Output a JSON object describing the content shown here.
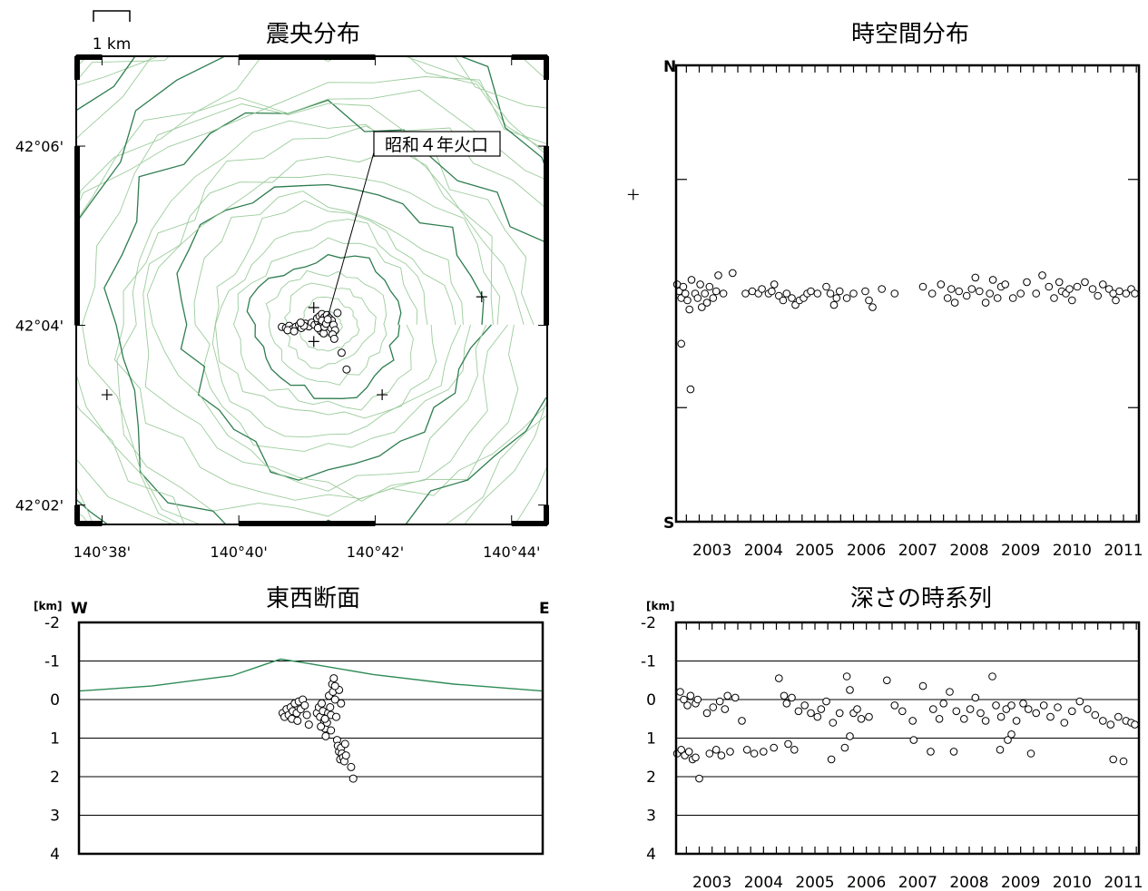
{
  "colors": {
    "frame": "#000000",
    "contour_major": "#2e7d4f",
    "contour_minor": "#9ccc9c",
    "topography": "#2e8b57"
  },
  "chart_data": [
    {
      "id": "epicenter-map",
      "type": "scatter",
      "title": "震央分布",
      "scale_bar_label": "1 km",
      "x_tick_labels": [
        "140°38'",
        "140°40'",
        "140°42'",
        "140°44'"
      ],
      "y_tick_labels": [
        "42°06'",
        "42°04'",
        "42°02'"
      ],
      "x_ticks_deg": [
        140.6333,
        140.6667,
        140.7,
        140.7333
      ],
      "y_ticks_deg": [
        42.1,
        42.0667,
        42.0333
      ],
      "xlim": [
        140.627,
        140.742
      ],
      "ylim": [
        42.0297,
        42.1167
      ],
      "crater": {
        "label": "昭和４年火口",
        "lon": 140.6885,
        "lat": 42.0685
      },
      "stations_lonlat": [
        [
          140.763,
          42.091
        ],
        [
          140.726,
          42.072
        ],
        [
          140.6345,
          42.0538
        ],
        [
          140.7017,
          42.0538
        ],
        [
          140.685,
          42.07
        ],
        [
          140.685,
          42.0637
        ]
      ],
      "points_lonlat": [
        [
          140.683,
          42.067
        ],
        [
          140.6838,
          42.0665
        ],
        [
          140.6845,
          42.0672
        ],
        [
          140.6852,
          42.0668
        ],
        [
          140.686,
          42.0674
        ],
        [
          140.6866,
          42.0666
        ],
        [
          140.6872,
          42.067
        ],
        [
          140.6878,
          42.0676
        ],
        [
          140.6884,
          42.0668
        ],
        [
          140.689,
          42.0672
        ],
        [
          140.6858,
          42.068
        ],
        [
          140.6864,
          42.0684
        ],
        [
          140.687,
          42.0688
        ],
        [
          140.6876,
          42.0682
        ],
        [
          140.6882,
          42.0686
        ],
        [
          140.6888,
          42.068
        ],
        [
          140.6894,
          42.0676
        ],
        [
          140.688,
          42.066
        ],
        [
          140.6886,
          42.0656
        ],
        [
          140.6892,
          42.0662
        ],
        [
          140.6868,
          42.0656
        ],
        [
          140.6874,
          42.0652
        ],
        [
          140.6898,
          42.0668
        ],
        [
          140.6902,
          42.0658
        ],
        [
          140.6896,
          42.065
        ],
        [
          140.6772,
          42.0664
        ],
        [
          140.6782,
          42.0662
        ],
        [
          140.679,
          42.0666
        ],
        [
          140.6798,
          42.066
        ],
        [
          140.6806,
          42.0664
        ],
        [
          140.6814,
          42.0668
        ],
        [
          140.682,
          42.0662
        ],
        [
          140.6826,
          42.0666
        ],
        [
          140.6786,
          42.0658
        ],
        [
          140.6802,
          42.0656
        ],
        [
          140.6818,
          42.0672
        ],
        [
          140.6908,
          42.069
        ],
        [
          140.69,
          42.0642
        ],
        [
          140.6918,
          42.0616
        ],
        [
          140.693,
          42.0585
        ],
        [
          140.686,
          42.0662
        ],
        [
          140.6876,
          42.0664
        ],
        [
          140.687,
          42.0676
        ],
        [
          140.688,
          42.067
        ],
        [
          140.6884,
          42.0678
        ]
      ]
    },
    {
      "id": "space-time",
      "type": "scatter",
      "title": "時空間分布",
      "y_top_label": "N",
      "y_bottom_label": "S",
      "x_tick_labels": [
        "2003",
        "2004",
        "2005",
        "2006",
        "2007",
        "2008",
        "2009",
        "2010",
        "2011"
      ],
      "xlim": [
        2002.3,
        2011.3
      ],
      "ylim": [
        -1,
        1
      ],
      "points": [
        [
          2002.32,
          0.04
        ],
        [
          2002.36,
          0.01
        ],
        [
          2002.4,
          -0.02
        ],
        [
          2002.44,
          0.03
        ],
        [
          2002.48,
          0.0
        ],
        [
          2002.52,
          -0.03
        ],
        [
          2002.4,
          -0.22
        ],
        [
          2002.58,
          -0.42
        ],
        [
          2002.56,
          -0.07
        ],
        [
          2002.6,
          0.06
        ],
        [
          2002.67,
          0.0
        ],
        [
          2002.72,
          -0.02
        ],
        [
          2002.77,
          0.04
        ],
        [
          2002.8,
          -0.06
        ],
        [
          2002.86,
          0.0
        ],
        [
          2002.9,
          -0.04
        ],
        [
          2002.95,
          0.03
        ],
        [
          2003.02,
          -0.02
        ],
        [
          2003.08,
          0.01
        ],
        [
          2003.12,
          0.08
        ],
        [
          2003.22,
          0.0
        ],
        [
          2003.4,
          0.09
        ],
        [
          2003.65,
          0.0
        ],
        [
          2003.78,
          0.01
        ],
        [
          2003.9,
          0.0
        ],
        [
          2003.97,
          0.02
        ],
        [
          2004.1,
          0.0
        ],
        [
          2004.16,
          0.01
        ],
        [
          2004.21,
          0.04
        ],
        [
          2004.3,
          -0.01
        ],
        [
          2004.38,
          -0.03
        ],
        [
          2004.45,
          0.0
        ],
        [
          2004.55,
          -0.02
        ],
        [
          2004.62,
          -0.05
        ],
        [
          2004.7,
          -0.03
        ],
        [
          2004.78,
          -0.02
        ],
        [
          2004.85,
          0.0
        ],
        [
          2004.92,
          0.01
        ],
        [
          2005.05,
          0.0
        ],
        [
          2005.22,
          0.03
        ],
        [
          2005.3,
          0.0
        ],
        [
          2005.37,
          -0.05
        ],
        [
          2005.42,
          -0.02
        ],
        [
          2005.48,
          0.01
        ],
        [
          2005.62,
          -0.02
        ],
        [
          2005.75,
          0.0
        ],
        [
          2005.98,
          0.01
        ],
        [
          2006.05,
          -0.03
        ],
        [
          2006.12,
          -0.06
        ],
        [
          2006.3,
          0.02
        ],
        [
          2006.55,
          0.0
        ],
        [
          2007.1,
          0.03
        ],
        [
          2007.28,
          0.0
        ],
        [
          2007.45,
          0.04
        ],
        [
          2007.58,
          -0.02
        ],
        [
          2007.65,
          0.02
        ],
        [
          2007.72,
          -0.04
        ],
        [
          2007.8,
          0.01
        ],
        [
          2007.95,
          -0.01
        ],
        [
          2008.05,
          0.02
        ],
        [
          2008.12,
          0.07
        ],
        [
          2008.2,
          0.01
        ],
        [
          2008.32,
          -0.04
        ],
        [
          2008.4,
          0.0
        ],
        [
          2008.46,
          0.06
        ],
        [
          2008.55,
          -0.02
        ],
        [
          2008.62,
          0.03
        ],
        [
          2008.7,
          0.04
        ],
        [
          2008.85,
          -0.02
        ],
        [
          2009.0,
          0.0
        ],
        [
          2009.12,
          0.05
        ],
        [
          2009.3,
          0.0
        ],
        [
          2009.42,
          0.08
        ],
        [
          2009.55,
          0.03
        ],
        [
          2009.65,
          -0.02
        ],
        [
          2009.75,
          0.05
        ],
        [
          2009.8,
          0.01
        ],
        [
          2009.88,
          0.0
        ],
        [
          2009.95,
          0.02
        ],
        [
          2010.0,
          -0.03
        ],
        [
          2010.1,
          0.03
        ],
        [
          2010.25,
          0.05
        ],
        [
          2010.4,
          0.02
        ],
        [
          2010.5,
          -0.01
        ],
        [
          2010.6,
          0.04
        ],
        [
          2010.72,
          0.02
        ],
        [
          2010.8,
          0.0
        ],
        [
          2010.85,
          -0.03
        ],
        [
          2010.92,
          0.01
        ],
        [
          2011.05,
          0.0
        ],
        [
          2011.15,
          0.02
        ],
        [
          2011.22,
          0.0
        ]
      ]
    },
    {
      "id": "ew-section",
      "type": "scatter",
      "title": "東西断面",
      "unit_label": "[km]",
      "left_label": "W",
      "right_label": "E",
      "y_tick_labels": [
        "-2",
        "-1",
        "0",
        "1",
        "2",
        "3",
        "4"
      ],
      "ylim": [
        -2,
        4
      ],
      "xlim": [
        140.627,
        140.742
      ],
      "topography_lonalt": [
        [
          140.627,
          -0.22
        ],
        [
          140.645,
          -0.35
        ],
        [
          140.665,
          -0.62
        ],
        [
          140.677,
          -1.05
        ],
        [
          140.683,
          -0.95
        ],
        [
          140.7,
          -0.65
        ],
        [
          140.72,
          -0.4
        ],
        [
          140.742,
          -0.22
        ]
      ],
      "points_lon_depth": [
        [
          140.6775,
          0.35
        ],
        [
          140.678,
          0.45
        ],
        [
          140.6785,
          0.25
        ],
        [
          140.679,
          0.4
        ],
        [
          140.6795,
          0.2
        ],
        [
          140.68,
          0.3
        ],
        [
          140.6805,
          0.1
        ],
        [
          140.681,
          0.35
        ],
        [
          140.6815,
          0.05
        ],
        [
          140.682,
          0.25
        ],
        [
          140.6825,
          0.0
        ],
        [
          140.683,
          0.15
        ],
        [
          140.6835,
          0.4
        ],
        [
          140.684,
          0.65
        ],
        [
          140.6798,
          0.5
        ],
        [
          140.6812,
          0.55
        ],
        [
          140.686,
          0.35
        ],
        [
          140.6865,
          0.2
        ],
        [
          140.6868,
          0.45
        ],
        [
          140.6872,
          0.1
        ],
        [
          140.6875,
          0.3
        ],
        [
          140.6878,
          0.55
        ],
        [
          140.688,
          0.75
        ],
        [
          140.6882,
          0.95
        ],
        [
          140.6885,
          0.6
        ],
        [
          140.6888,
          0.35
        ],
        [
          140.689,
          -0.1
        ],
        [
          140.6893,
          0.2
        ],
        [
          140.6895,
          0.4
        ],
        [
          140.6898,
          -0.4
        ],
        [
          140.69,
          -0.2
        ],
        [
          140.6902,
          -0.55
        ],
        [
          140.6905,
          0.0
        ],
        [
          140.6908,
          0.45
        ],
        [
          140.691,
          1.05
        ],
        [
          140.6912,
          1.2
        ],
        [
          140.6915,
          1.35
        ],
        [
          140.6918,
          1.55
        ],
        [
          140.692,
          1.25
        ],
        [
          140.6922,
          1.4
        ],
        [
          140.6925,
          1.5
        ],
        [
          140.6928,
          1.6
        ],
        [
          140.693,
          1.15
        ],
        [
          140.6932,
          1.45
        ],
        [
          140.6915,
          -0.25
        ],
        [
          140.692,
          0.1
        ],
        [
          140.6945,
          1.75
        ],
        [
          140.695,
          2.05
        ],
        [
          140.687,
          0.7
        ],
        [
          140.688,
          0.5
        ],
        [
          140.6895,
          0.8
        ],
        [
          140.6905,
          -0.35
        ]
      ]
    },
    {
      "id": "depth-time",
      "type": "scatter",
      "title": "深さの時系列",
      "unit_label": "[km]",
      "y_tick_labels": [
        "-2",
        "-1",
        "0",
        "1",
        "2",
        "3",
        "4"
      ],
      "x_tick_labels": [
        "2003",
        "2004",
        "2005",
        "2006",
        "2007",
        "2008",
        "2009",
        "2010",
        "2011"
      ],
      "xlim": [
        2002.3,
        2011.3
      ],
      "ylim": [
        -2,
        4
      ],
      "points": [
        [
          2002.38,
          -0.2
        ],
        [
          2002.45,
          0.0
        ],
        [
          2002.52,
          0.15
        ],
        [
          2002.58,
          -0.1
        ],
        [
          2002.68,
          0.1
        ],
        [
          2002.72,
          0.0
        ],
        [
          2002.9,
          0.35
        ],
        [
          2003.02,
          0.2
        ],
        [
          2003.15,
          0.05
        ],
        [
          2003.25,
          0.25
        ],
        [
          2003.3,
          -0.1
        ],
        [
          2003.45,
          -0.05
        ],
        [
          2003.58,
          0.55
        ],
        [
          2004.3,
          -0.55
        ],
        [
          2004.4,
          -0.1
        ],
        [
          2004.45,
          0.1
        ],
        [
          2004.55,
          -0.05
        ],
        [
          2004.68,
          0.3
        ],
        [
          2004.8,
          0.15
        ],
        [
          2004.92,
          0.35
        ],
        [
          2005.05,
          0.45
        ],
        [
          2005.12,
          0.25
        ],
        [
          2005.22,
          0.05
        ],
        [
          2005.35,
          0.6
        ],
        [
          2005.48,
          0.35
        ],
        [
          2005.62,
          -0.6
        ],
        [
          2005.68,
          -0.25
        ],
        [
          2005.75,
          0.35
        ],
        [
          2005.82,
          0.25
        ],
        [
          2005.9,
          0.5
        ],
        [
          2006.05,
          0.45
        ],
        [
          2006.4,
          -0.5
        ],
        [
          2006.55,
          0.15
        ],
        [
          2006.7,
          0.3
        ],
        [
          2006.9,
          0.55
        ],
        [
          2007.1,
          -0.35
        ],
        [
          2007.3,
          0.25
        ],
        [
          2007.42,
          0.5
        ],
        [
          2007.5,
          0.1
        ],
        [
          2007.62,
          -0.2
        ],
        [
          2007.75,
          0.3
        ],
        [
          2007.9,
          0.5
        ],
        [
          2008.02,
          0.25
        ],
        [
          2008.12,
          -0.05
        ],
        [
          2008.22,
          0.35
        ],
        [
          2008.32,
          0.55
        ],
        [
          2008.45,
          -0.6
        ],
        [
          2008.52,
          0.15
        ],
        [
          2008.62,
          0.45
        ],
        [
          2008.72,
          0.25
        ],
        [
          2008.82,
          0.15
        ],
        [
          2008.92,
          0.55
        ],
        [
          2009.05,
          0.1
        ],
        [
          2009.15,
          0.25
        ],
        [
          2009.3,
          0.35
        ],
        [
          2009.45,
          0.15
        ],
        [
          2009.58,
          0.45
        ],
        [
          2009.72,
          0.2
        ],
        [
          2009.85,
          0.6
        ],
        [
          2010.0,
          0.3
        ],
        [
          2010.15,
          0.05
        ],
        [
          2010.3,
          0.25
        ],
        [
          2010.45,
          0.4
        ],
        [
          2010.6,
          0.55
        ],
        [
          2010.75,
          0.65
        ],
        [
          2010.9,
          0.45
        ],
        [
          2011.05,
          0.55
        ],
        [
          2011.15,
          0.6
        ],
        [
          2011.22,
          0.65
        ],
        [
          2002.32,
          1.4
        ],
        [
          2002.4,
          1.3
        ],
        [
          2002.47,
          1.45
        ],
        [
          2002.55,
          1.35
        ],
        [
          2002.62,
          1.55
        ],
        [
          2002.68,
          1.5
        ],
        [
          2002.75,
          2.05
        ],
        [
          2002.95,
          1.4
        ],
        [
          2003.08,
          1.3
        ],
        [
          2003.18,
          1.45
        ],
        [
          2003.35,
          1.35
        ],
        [
          2003.68,
          1.3
        ],
        [
          2003.82,
          1.4
        ],
        [
          2004.0,
          1.35
        ],
        [
          2004.2,
          1.25
        ],
        [
          2004.48,
          1.15
        ],
        [
          2004.6,
          1.3
        ],
        [
          2005.32,
          1.55
        ],
        [
          2005.58,
          1.25
        ],
        [
          2005.68,
          0.95
        ],
        [
          2006.92,
          1.05
        ],
        [
          2007.25,
          1.35
        ],
        [
          2007.7,
          1.35
        ],
        [
          2008.6,
          1.3
        ],
        [
          2008.75,
          1.05
        ],
        [
          2008.82,
          0.9
        ],
        [
          2009.2,
          1.4
        ],
        [
          2010.8,
          1.55
        ],
        [
          2011.0,
          1.6
        ]
      ]
    }
  ]
}
